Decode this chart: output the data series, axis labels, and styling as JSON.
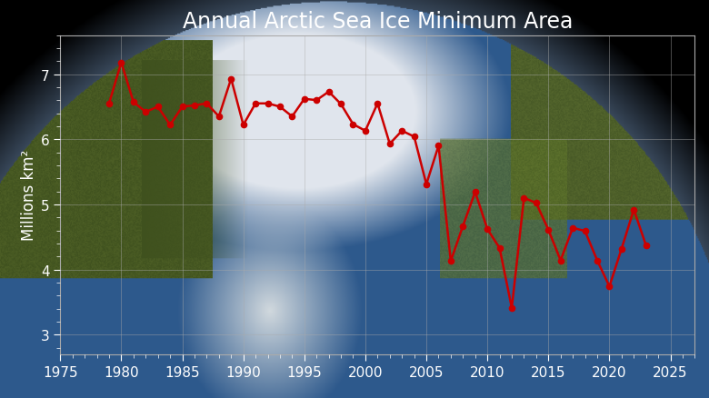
{
  "title": "Annual Arctic Sea Ice Minimum Area",
  "ylabel": "Millions km²",
  "xlim": [
    1975,
    2027
  ],
  "ylim": [
    2.7,
    7.6
  ],
  "xticks": [
    1975,
    1980,
    1985,
    1990,
    1995,
    2000,
    2005,
    2010,
    2015,
    2020,
    2025
  ],
  "yticks": [
    3,
    4,
    5,
    6,
    7
  ],
  "background_color": "#000000",
  "line_color": "#cc0000",
  "marker_color": "#cc0000",
  "grid_color": "#aaaaaa",
  "text_color": "#ffffff",
  "years": [
    1979,
    1980,
    1981,
    1982,
    1983,
    1984,
    1985,
    1986,
    1987,
    1988,
    1989,
    1990,
    1991,
    1992,
    1993,
    1994,
    1995,
    1996,
    1997,
    1998,
    1999,
    2000,
    2001,
    2002,
    2003,
    2004,
    2005,
    2006,
    2007,
    2008,
    2009,
    2010,
    2011,
    2012,
    2013,
    2014,
    2015,
    2016,
    2017,
    2018,
    2019,
    2020,
    2021,
    2022,
    2023
  ],
  "values": [
    6.55,
    7.18,
    6.57,
    6.42,
    6.5,
    6.22,
    6.5,
    6.52,
    6.55,
    6.35,
    6.93,
    6.22,
    6.55,
    6.55,
    6.5,
    6.35,
    6.62,
    6.6,
    6.73,
    6.54,
    6.23,
    6.13,
    6.55,
    5.93,
    6.13,
    6.04,
    5.31,
    5.9,
    4.13,
    4.67,
    5.19,
    4.62,
    4.33,
    3.41,
    5.1,
    5.02,
    4.61,
    4.14,
    4.64,
    4.59,
    4.14,
    3.74,
    4.32,
    4.92,
    4.37
  ],
  "title_fontsize": 17,
  "axis_label_fontsize": 12,
  "tick_fontsize": 11
}
